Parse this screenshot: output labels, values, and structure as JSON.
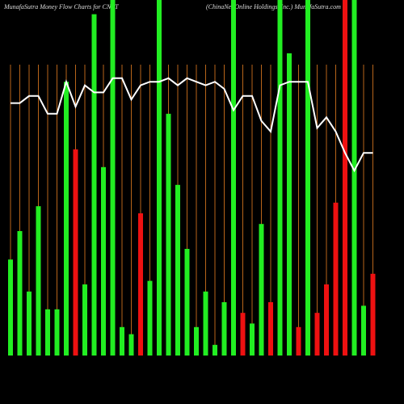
{
  "chart_data": {
    "type": "bar",
    "title": "MunafaSutra  Money Flow  Charts for CNET",
    "subtitle": "(ChinaNet  Online  Holdings, Inc.) MunafaSutra.com",
    "values": [
      27,
      35,
      18,
      42,
      13,
      13,
      77,
      58,
      20,
      96,
      53,
      100,
      8,
      6,
      40,
      21,
      100,
      68,
      48,
      30,
      8,
      18,
      3,
      15,
      100,
      12,
      9,
      37,
      15,
      100,
      85,
      8,
      100,
      12,
      20,
      43,
      100,
      100,
      14,
      23
    ],
    "colors": [
      "#22ee22",
      "#22ee22",
      "#22ee22",
      "#22ee22",
      "#22ee22",
      "#22ee22",
      "#22ee22",
      "#ee1111",
      "#22ee22",
      "#22ee22",
      "#22ee22",
      "#22ee22",
      "#22ee22",
      "#22ee22",
      "#ee1111",
      "#22ee22",
      "#22ee22",
      "#22ee22",
      "#22ee22",
      "#22ee22",
      "#22ee22",
      "#22ee22",
      "#22ee22",
      "#22ee22",
      "#22ee22",
      "#ee1111",
      "#22ee22",
      "#22ee22",
      "#ee1111",
      "#22ee22",
      "#22ee22",
      "#ee1111",
      "#22ee22",
      "#ee1111",
      "#ee1111",
      "#ee1111",
      "#ee1111",
      "#22ee22",
      "#22ee22",
      "#ee1111"
    ],
    "line": {
      "color": "#ffffff",
      "values": [
        71,
        71,
        73,
        73,
        68,
        68,
        77,
        70,
        76,
        74,
        74,
        78,
        78,
        72,
        76,
        77,
        77,
        78,
        76,
        78,
        77,
        76,
        77,
        75,
        69,
        73,
        73,
        66,
        63,
        76,
        77,
        77,
        77,
        64,
        67,
        63,
        57,
        52,
        57,
        57
      ]
    },
    "ylim": [
      0,
      100
    ],
    "gridline_color": "#b8651a"
  }
}
